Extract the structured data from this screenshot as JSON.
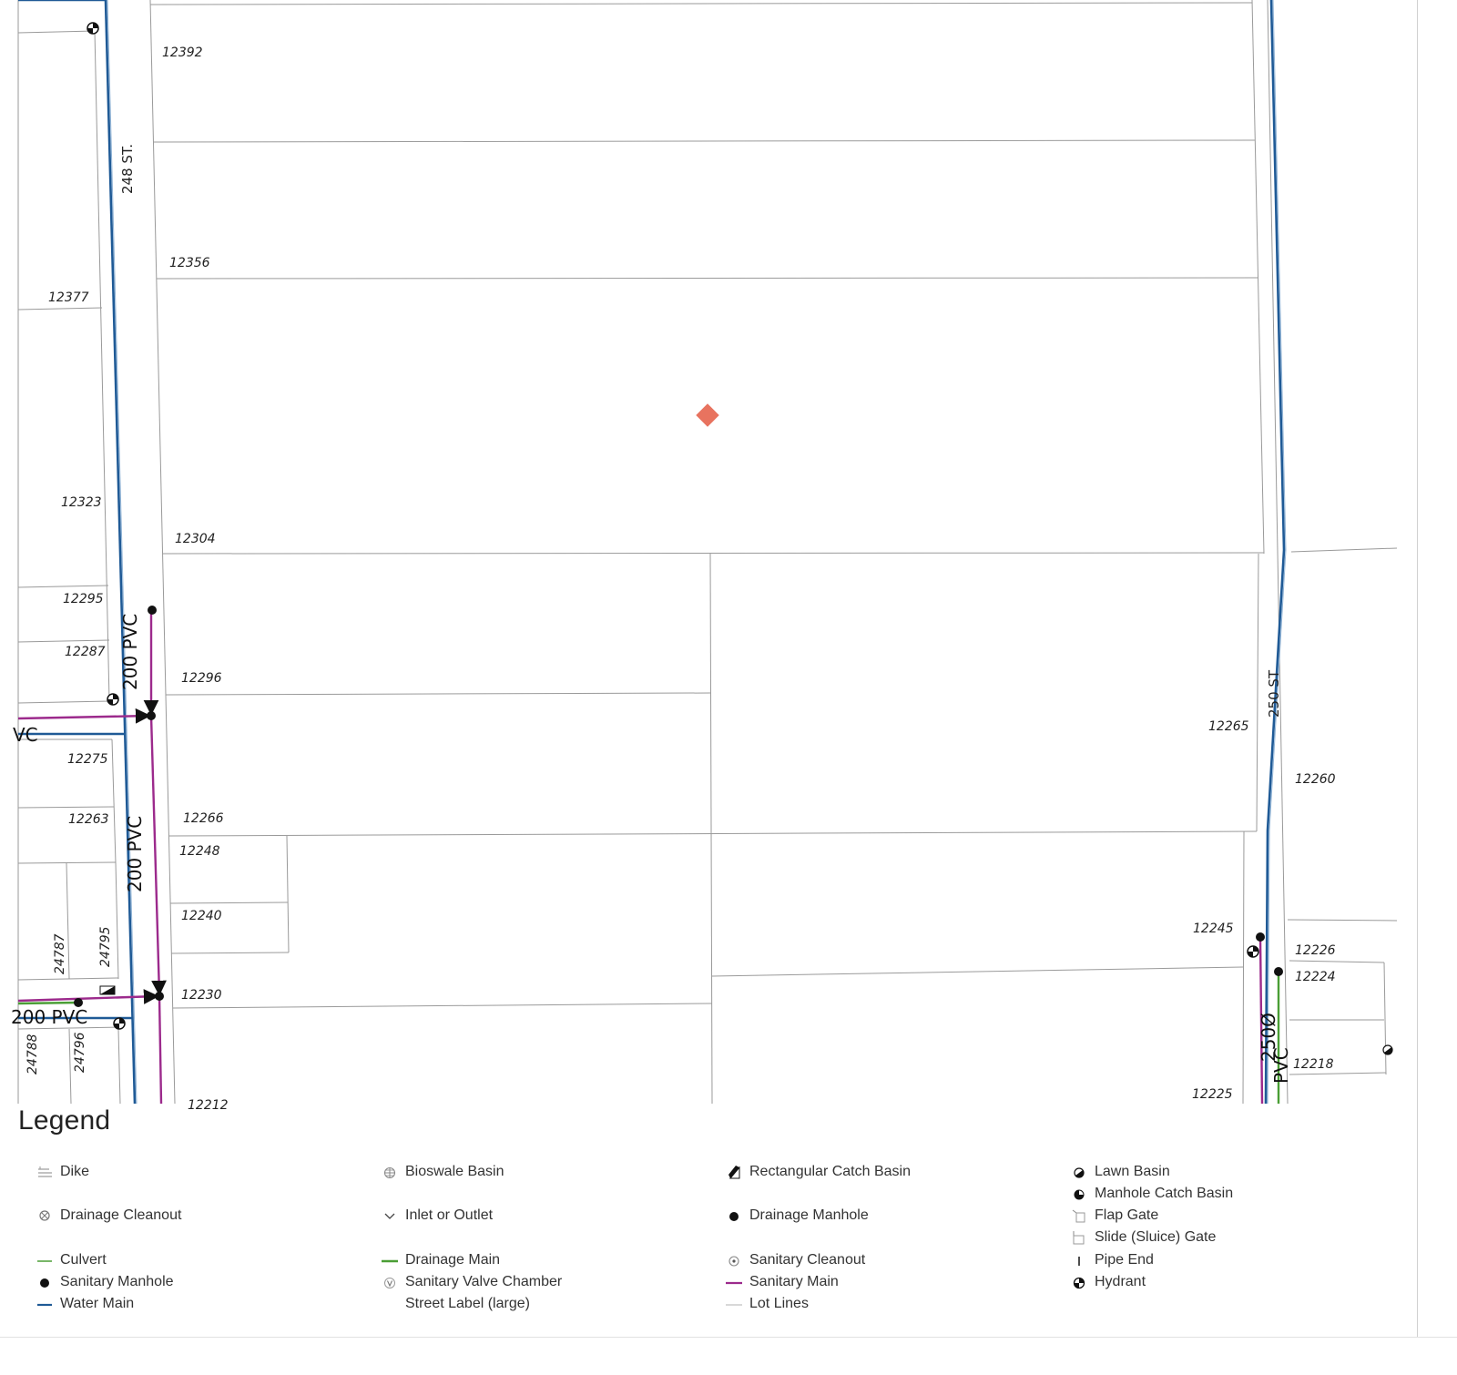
{
  "map": {
    "streets": [
      "248 ST.",
      "250 ST"
    ],
    "pipe_labels": [
      "200 PVC",
      "200 PVC",
      "200 PVC",
      "VC",
      "250Ø",
      "PVC"
    ],
    "addresses": [
      "12392",
      "12356",
      "12377",
      "12323",
      "12304",
      "12295",
      "12287",
      "12296",
      "12275",
      "12263",
      "12266",
      "12248",
      "12240",
      "12230",
      "24787",
      "24795",
      "24788",
      "24796",
      "12265",
      "12260",
      "12245",
      "12226",
      "12224",
      "12218",
      "12225",
      "12212"
    ]
  },
  "legend": {
    "title": "Legend",
    "items": [
      {
        "label": "Dike",
        "icon": "dike-icon"
      },
      {
        "label": "Bioswale Basin",
        "icon": "bioswale-basin-icon"
      },
      {
        "label": "Rectangular Catch Basin",
        "icon": "rectangular-catch-basin-icon"
      },
      {
        "label": "Lawn Basin",
        "icon": "lawn-basin-icon"
      },
      {
        "label": "Manhole Catch Basin",
        "icon": "manhole-catch-basin-icon"
      },
      {
        "label": "Drainage Cleanout",
        "icon": "drainage-cleanout-icon"
      },
      {
        "label": "Inlet or Outlet",
        "icon": "inlet-outlet-icon"
      },
      {
        "label": "Drainage Manhole",
        "icon": "drainage-manhole-icon"
      },
      {
        "label": "Flap Gate",
        "icon": "flap-gate-icon"
      },
      {
        "label": "Slide (Sluice) Gate",
        "icon": "slide-gate-icon"
      },
      {
        "label": "Culvert",
        "icon": "culvert-icon",
        "color": "#4a9e35"
      },
      {
        "label": "Drainage Main",
        "icon": "drainage-main-icon",
        "color": "#4a9e35"
      },
      {
        "label": "Sanitary Cleanout",
        "icon": "sanitary-cleanout-icon"
      },
      {
        "label": "Pipe End",
        "icon": "pipe-end-icon"
      },
      {
        "label": "Sanitary Manhole",
        "icon": "sanitary-manhole-icon"
      },
      {
        "label": "Sanitary Valve Chamber",
        "icon": "sanitary-valve-chamber-icon"
      },
      {
        "label": "Sanitary Main",
        "icon": "sanitary-main-icon",
        "color": "#9c2a8c"
      },
      {
        "label": "Hydrant",
        "icon": "hydrant-icon"
      },
      {
        "label": "Water Main",
        "icon": "water-main-icon",
        "color": "#1f5a96"
      },
      {
        "label": "Street Label (large)",
        "icon": "none"
      },
      {
        "label": "Lot Lines",
        "icon": "lot-lines-icon",
        "color": "#cccccc"
      }
    ]
  },
  "colors": {
    "water_main": "#1f5a96",
    "sanitary_main": "#9c2a8c",
    "drainage_main": "#4a9e35",
    "lot_lines": "#9a9a9a",
    "selected_marker": "#e8735f"
  }
}
